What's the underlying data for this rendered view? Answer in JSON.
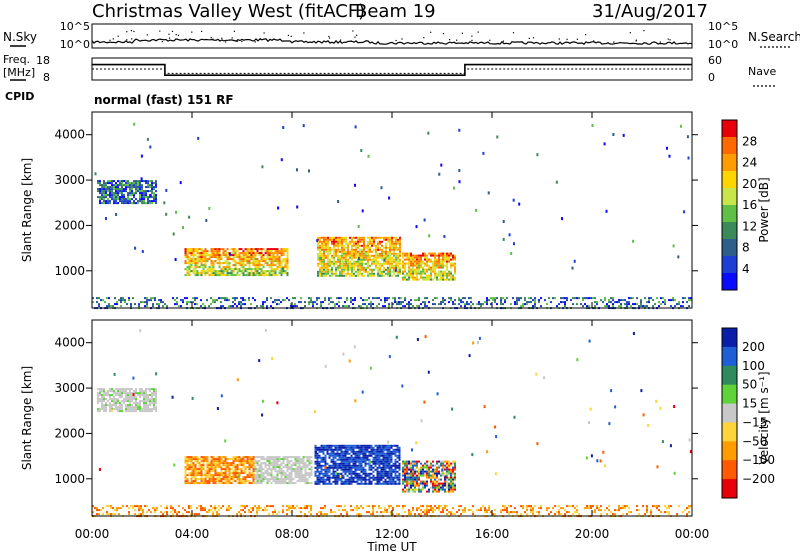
{
  "header": {
    "title": "Christmas Valley West (fitACF)",
    "beam": "Beam 19",
    "date": "31/Aug/2017"
  },
  "strip_panels": {
    "nsky_label": "N.Sky",
    "nsearch_label": "N.Search",
    "noise_ticks": [
      "10^5",
      "10^0"
    ],
    "freq_label": "Freq.",
    "freq_unit": "[MHz]",
    "freq_ticks": [
      "18",
      "8"
    ],
    "nave_label": "Nave",
    "nave_ticks": [
      "60",
      "0"
    ],
    "cpid_label": "CPID",
    "cpid_text": "normal (fast) 151 RF"
  },
  "chart_data": [
    {
      "type": "line",
      "name": "noise-strip",
      "ylabel": "N.Sky",
      "y2label": "N.Search",
      "ylim": [
        1,
        100000
      ],
      "ylog": true
    },
    {
      "type": "line",
      "name": "frequency-nave-strip",
      "ylabel": "Freq. [MHz]",
      "y2label": "Nave",
      "ylim": [
        8,
        18
      ],
      "y2lim": [
        0,
        60
      ],
      "series": [
        {
          "name": "Freq.",
          "x": [
            "00:00",
            "02:55",
            "02:55",
            "14:55",
            "14:55",
            "24:00"
          ],
          "values": [
            15,
            15,
            10.2,
            10.2,
            15,
            15
          ]
        },
        {
          "name": "Nave",
          "x": [
            "00:00",
            "02:55",
            "02:55",
            "14:55",
            "14:55",
            "24:00"
          ],
          "values": [
            30,
            30,
            18,
            18,
            30,
            30
          ]
        }
      ]
    },
    {
      "type": "heatmap",
      "name": "power-panel",
      "ylabel": "Slant Range [km]",
      "yticks": [
        "4000",
        "3000",
        "2000",
        "1000"
      ],
      "ylim": [
        180,
        4500
      ],
      "colorbar": {
        "label": "Power [dB]",
        "ticks": [
          "28",
          "24",
          "20",
          "16",
          "12",
          "8",
          "4"
        ],
        "colors": [
          "#e8000b",
          "#ff6a00",
          "#ff9d00",
          "#ffd500",
          "#c8e64a",
          "#5fbf47",
          "#3b8a5a",
          "#2e5f8a",
          "#1e3fd4",
          "#0a0aff"
        ]
      },
      "regions": [
        {
          "t0": 0.2,
          "t1": 2.6,
          "r0": 2500,
          "r1": 3000,
          "level": "low"
        },
        {
          "t0": 3.7,
          "t1": 7.8,
          "r0": 900,
          "r1": 1500,
          "level": "high"
        },
        {
          "t0": 9.0,
          "t1": 12.3,
          "r0": 900,
          "r1": 1750,
          "level": "high"
        },
        {
          "t0": 12.4,
          "t1": 14.5,
          "r0": 800,
          "r1": 1400,
          "level": "high"
        },
        {
          "t0": 0.0,
          "t1": 24.0,
          "r0": 180,
          "r1": 420,
          "level": "low"
        }
      ]
    },
    {
      "type": "heatmap",
      "name": "velocity-panel",
      "xlabel": "Time UT",
      "xticks": [
        "00:00",
        "04:00",
        "08:00",
        "12:00",
        "16:00",
        "20:00",
        "00:00"
      ],
      "ylabel": "Slant Range [km]",
      "yticks": [
        "4000",
        "3000",
        "2000",
        "1000"
      ],
      "ylim": [
        180,
        4500
      ],
      "colorbar": {
        "label": "Velocity [m s⁻¹]",
        "ticks": [
          "200",
          "100",
          "50",
          "15",
          "−15",
          "−50",
          "−100",
          "−200"
        ],
        "colors": [
          "#0a1fa8",
          "#1f5fd6",
          "#2f8a5e",
          "#5fd33a",
          "#c8c8c8",
          "#ffd33a",
          "#ff9d00",
          "#ff5a00",
          "#e8000b"
        ]
      },
      "regions": [
        {
          "t0": 0.2,
          "t1": 2.6,
          "r0": 2500,
          "r1": 3000,
          "level": "gray"
        },
        {
          "t0": 3.7,
          "t1": 6.5,
          "r0": 900,
          "r1": 1500,
          "level": "orange"
        },
        {
          "t0": 6.5,
          "t1": 8.8,
          "r0": 900,
          "r1": 1500,
          "level": "gray"
        },
        {
          "t0": 8.9,
          "t1": 12.3,
          "r0": 900,
          "r1": 1750,
          "level": "blue"
        },
        {
          "t0": 12.4,
          "t1": 14.5,
          "r0": 700,
          "r1": 1400,
          "level": "mixed"
        },
        {
          "t0": 0.0,
          "t1": 24.0,
          "r0": 180,
          "r1": 420,
          "level": "orange"
        }
      ]
    }
  ]
}
